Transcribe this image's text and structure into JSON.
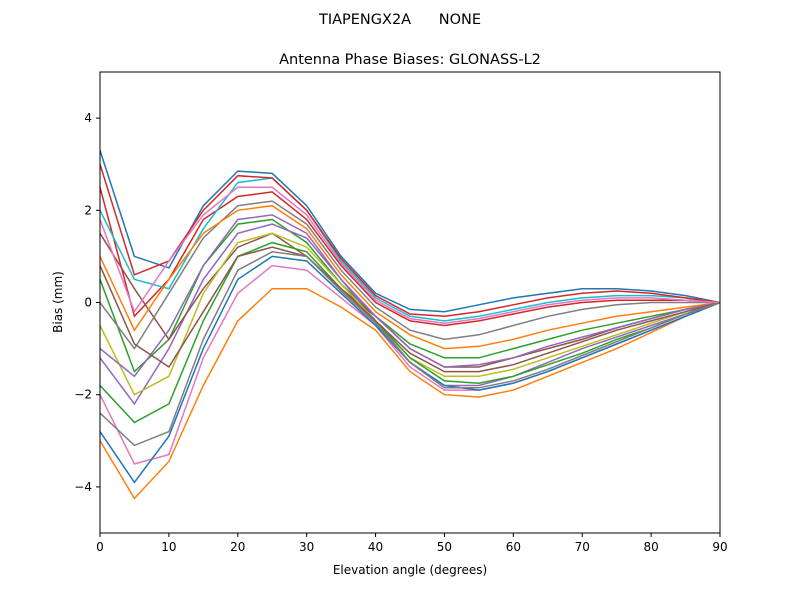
{
  "figure_title": "TIAPENGX2A      NONE",
  "chart_data": {
    "type": "line",
    "title": "Antenna Phase Biases: GLONASS-L2",
    "xlabel": "Elevation angle (degrees)",
    "ylabel": "Bias (mm)",
    "xlim": [
      0,
      90
    ],
    "ylim": [
      -5,
      5
    ],
    "xticks": [
      0,
      10,
      20,
      30,
      40,
      50,
      60,
      70,
      80,
      90
    ],
    "yticks": [
      -4,
      -2,
      0,
      2,
      4
    ],
    "grid": false,
    "legend": "none",
    "colors": [
      "#1f77b4",
      "#ff7f0e",
      "#2ca02c",
      "#d62728",
      "#9467bd",
      "#8c564b",
      "#e377c2",
      "#7f7f7f",
      "#bcbd22",
      "#17becf"
    ],
    "x": [
      0,
      5,
      10,
      15,
      20,
      25,
      30,
      35,
      40,
      45,
      50,
      55,
      60,
      65,
      70,
      75,
      80,
      85,
      90
    ],
    "series": [
      {
        "values": [
          3.3,
          1.0,
          0.75,
          2.1,
          2.85,
          2.8,
          2.1,
          1.0,
          0.2,
          -0.15,
          -0.2,
          -0.05,
          0.1,
          0.2,
          0.3,
          0.3,
          0.25,
          0.15,
          0
        ]
      },
      {
        "values": [
          -3.0,
          -4.25,
          -3.45,
          -1.8,
          -0.4,
          0.3,
          0.3,
          -0.1,
          -0.6,
          -1.5,
          -2.0,
          -2.05,
          -1.9,
          -1.6,
          -1.3,
          -1.0,
          -0.65,
          -0.3,
          0
        ]
      },
      {
        "values": [
          0.5,
          -1.5,
          -0.8,
          0.8,
          1.7,
          1.8,
          1.3,
          0.4,
          -0.3,
          -0.9,
          -1.2,
          -1.2,
          -1.0,
          -0.8,
          -0.6,
          -0.45,
          -0.3,
          -0.15,
          0
        ]
      },
      {
        "values": [
          2.5,
          -0.3,
          0.5,
          1.8,
          2.3,
          2.4,
          1.8,
          0.8,
          0,
          -0.4,
          -0.5,
          -0.4,
          -0.25,
          -0.1,
          0,
          0.05,
          0.05,
          0.05,
          0
        ]
      },
      {
        "values": [
          -1.2,
          -2.2,
          -1.0,
          0.5,
          1.5,
          1.7,
          1.4,
          0.5,
          -0.4,
          -1.3,
          -1.8,
          -1.8,
          -1.6,
          -1.3,
          -1.0,
          -0.75,
          -0.5,
          -0.25,
          0
        ]
      },
      {
        "values": [
          1.5,
          0.3,
          -0.8,
          0.3,
          1.2,
          1.5,
          1.0,
          0.3,
          -0.3,
          -1.0,
          -1.4,
          -1.4,
          -1.2,
          -1.0,
          -0.8,
          -0.55,
          -0.35,
          -0.15,
          0
        ]
      },
      {
        "values": [
          -2.0,
          -3.5,
          -3.3,
          -1.2,
          0.2,
          0.8,
          0.7,
          0.1,
          -0.5,
          -1.4,
          -1.9,
          -1.9,
          -1.75,
          -1.5,
          -1.2,
          -0.9,
          -0.6,
          -0.3,
          0
        ]
      },
      {
        "values": [
          0.0,
          -1.0,
          0.2,
          1.4,
          2.1,
          2.2,
          1.7,
          0.7,
          -0.1,
          -0.6,
          -0.8,
          -0.7,
          -0.5,
          -0.3,
          -0.15,
          -0.05,
          0,
          0,
          0
        ]
      },
      {
        "values": [
          -0.5,
          -2.0,
          -1.6,
          0.2,
          1.3,
          1.5,
          1.2,
          0.4,
          -0.4,
          -1.2,
          -1.6,
          -1.6,
          -1.45,
          -1.2,
          -0.95,
          -0.7,
          -0.45,
          -0.2,
          0
        ]
      },
      {
        "values": [
          2.0,
          0.5,
          0.3,
          1.6,
          2.6,
          2.7,
          2.0,
          0.9,
          0.1,
          -0.3,
          -0.4,
          -0.3,
          -0.15,
          0,
          0.1,
          0.15,
          0.15,
          0.1,
          0
        ]
      },
      {
        "values": [
          -2.8,
          -3.9,
          -2.9,
          -1.0,
          0.5,
          1.0,
          0.9,
          0.2,
          -0.5,
          -1.3,
          -1.8,
          -1.9,
          -1.75,
          -1.5,
          -1.2,
          -0.9,
          -0.6,
          -0.3,
          0
        ]
      },
      {
        "values": [
          1.0,
          -0.6,
          0.5,
          1.5,
          2.0,
          2.1,
          1.6,
          0.6,
          -0.2,
          -0.7,
          -1.0,
          -0.95,
          -0.8,
          -0.6,
          -0.45,
          -0.3,
          -0.2,
          -0.1,
          0
        ]
      },
      {
        "values": [
          -1.8,
          -2.6,
          -2.2,
          -0.4,
          1.0,
          1.3,
          1.1,
          0.3,
          -0.4,
          -1.2,
          -1.7,
          -1.75,
          -1.6,
          -1.35,
          -1.1,
          -0.8,
          -0.55,
          -0.25,
          0
        ]
      },
      {
        "values": [
          3.0,
          0.6,
          0.9,
          2.0,
          2.75,
          2.7,
          2.0,
          0.95,
          0.15,
          -0.25,
          -0.3,
          -0.2,
          -0.05,
          0.1,
          0.2,
          0.25,
          0.2,
          0.1,
          0
        ]
      },
      {
        "values": [
          -1.0,
          -1.6,
          -0.6,
          0.8,
          1.8,
          1.9,
          1.5,
          0.5,
          -0.3,
          -1.0,
          -1.4,
          -1.35,
          -1.2,
          -0.95,
          -0.75,
          -0.55,
          -0.35,
          -0.15,
          0
        ]
      },
      {
        "values": [
          0.8,
          -0.9,
          -1.4,
          -0.2,
          1.0,
          1.2,
          1.0,
          0.3,
          -0.4,
          -1.1,
          -1.5,
          -1.5,
          -1.35,
          -1.1,
          -0.85,
          -0.6,
          -0.4,
          -0.2,
          0
        ]
      },
      {
        "values": [
          1.8,
          -0.2,
          0.9,
          1.9,
          2.5,
          2.5,
          1.9,
          0.85,
          0.05,
          -0.35,
          -0.45,
          -0.35,
          -0.2,
          -0.05,
          0.05,
          0.1,
          0.1,
          0.05,
          0
        ]
      },
      {
        "values": [
          -2.4,
          -3.1,
          -2.8,
          -0.8,
          0.7,
          1.1,
          1.0,
          0.25,
          -0.45,
          -1.3,
          -1.85,
          -1.85,
          -1.7,
          -1.45,
          -1.15,
          -0.85,
          -0.55,
          -0.25,
          0
        ]
      }
    ]
  }
}
